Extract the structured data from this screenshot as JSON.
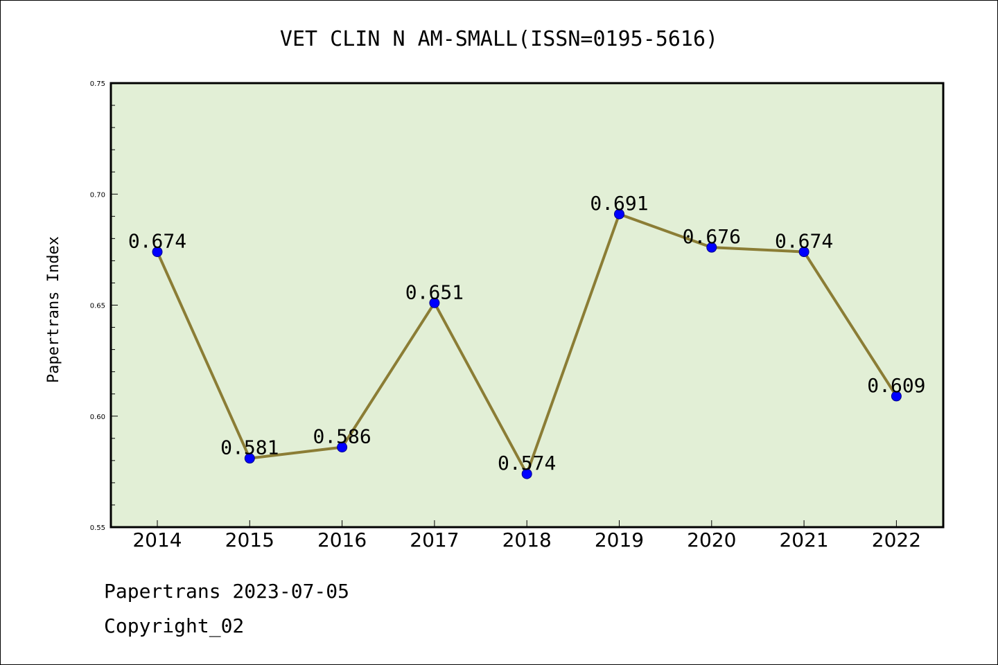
{
  "chart_data": {
    "type": "line",
    "title": "VET CLIN N AM-SMALL(ISSN=0195-5616)",
    "xlabel": "",
    "ylabel": "Papertrans Index",
    "categories": [
      "2014",
      "2015",
      "2016",
      "2017",
      "2018",
      "2019",
      "2020",
      "2021",
      "2022"
    ],
    "values": [
      0.674,
      0.581,
      0.586,
      0.651,
      0.574,
      0.691,
      0.676,
      0.674,
      0.609
    ],
    "data_labels": [
      "0.674",
      "0.581",
      "0.586",
      "0.651",
      "0.574",
      "0.691",
      "0.676",
      "0.674",
      "0.609"
    ],
    "ylim": [
      0.55,
      0.75
    ],
    "yticks": [
      0.55,
      0.6,
      0.65,
      0.7,
      0.75
    ],
    "ytick_labels": [
      "0.55",
      "0.60",
      "0.65",
      "0.70",
      "0.75"
    ],
    "grid": false,
    "colors": {
      "plot_background": "#e2efd6",
      "line": "#8b7d35",
      "marker": "#0000ff"
    }
  },
  "footer": {
    "line1": "Papertrans 2023-07-05",
    "line2": "Copyright_02"
  }
}
